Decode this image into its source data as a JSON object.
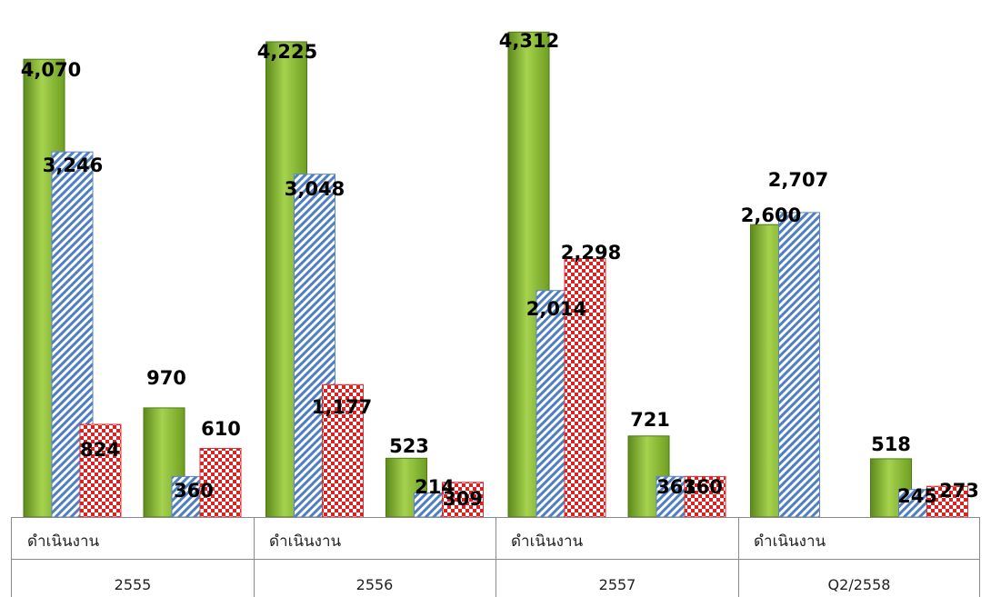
{
  "chart_data": {
    "type": "bar",
    "groups": [
      {
        "year": "2555",
        "subcategories": [
          {
            "label": "ดำเนินงาน",
            "values": [
              4070,
              3246,
              824
            ]
          },
          {
            "label": "",
            "values": [
              970,
              360,
              610
            ]
          }
        ]
      },
      {
        "year": "2556",
        "subcategories": [
          {
            "label": "ดำเนินงาน",
            "values": [
              4225,
              3048,
              1177
            ]
          },
          {
            "label": "",
            "values": [
              523,
              214,
              309
            ]
          }
        ]
      },
      {
        "year": "2557",
        "subcategories": [
          {
            "label": "ดำเนินงาน",
            "values": [
              4312,
              2014,
              2298
            ]
          },
          {
            "label": "",
            "values": [
              721,
              361,
              360
            ]
          }
        ]
      },
      {
        "year": "Q2/2558",
        "subcategories": [
          {
            "label": "ดำเนินงาน",
            "values": [
              2600,
              2707,
              null
            ]
          },
          {
            "label": "",
            "values": [
              518,
              245,
              273
            ]
          }
        ]
      }
    ],
    "labels": {
      "g0": {
        "year": "2555",
        "sub0": "ดำเนินงาน",
        "v": [
          "4,070",
          "3,246",
          "824",
          "970",
          "360",
          "610"
        ]
      },
      "g1": {
        "year": "2556",
        "sub0": "ดำเนินงาน",
        "v": [
          "4,225",
          "3,048",
          "1,177",
          "523",
          "214",
          "309"
        ]
      },
      "g2": {
        "year": "2557",
        "sub0": "ดำเนินงาน",
        "v": [
          "4,312",
          "2,014",
          "2,298",
          "721",
          "361",
          "360"
        ]
      },
      "g3": {
        "year": "Q2/2558",
        "sub0": "ดำเนินงาน",
        "v": [
          "2,600",
          "2,707",
          "",
          "518",
          "245",
          "273"
        ]
      }
    },
    "series_colors": [
      "#7fb230",
      "#4f7fc0",
      "#e02020"
    ],
    "ylim": [
      0,
      4500
    ],
    "legend": false,
    "grid": false,
    "title": "",
    "xlabel": "",
    "ylabel": ""
  }
}
